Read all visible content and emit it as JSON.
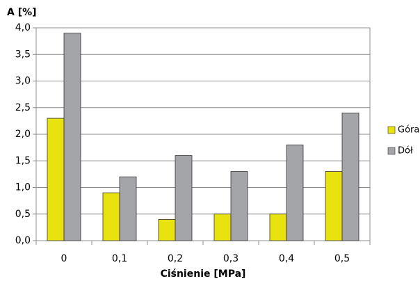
{
  "chart_data": {
    "type": "bar",
    "y_label": "A [%]",
    "x_label": "Ciśnienie [MPa]",
    "categories": [
      "0",
      "0,1",
      "0,2",
      "0,3",
      "0,4",
      "0,5"
    ],
    "series": [
      {
        "name": "Góra",
        "color": "#e8e20e",
        "values": [
          2.3,
          0.9,
          0.4,
          0.5,
          0.5,
          1.3
        ]
      },
      {
        "name": "Dół",
        "color": "#a3a5a8",
        "values": [
          3.9,
          1.2,
          1.6,
          1.3,
          1.8,
          2.4
        ]
      }
    ],
    "ylim": [
      0,
      4
    ],
    "yticks": [
      {
        "value": 0,
        "label": "0,0"
      },
      {
        "value": 0.5,
        "label": "0,5"
      },
      {
        "value": 1,
        "label": "1,0"
      },
      {
        "value": 1.5,
        "label": "1,5"
      },
      {
        "value": 2,
        "label": "2,0"
      },
      {
        "value": 2.5,
        "label": "2,5"
      },
      {
        "value": 3,
        "label": "3,0"
      },
      {
        "value": 3.5,
        "label": "3,5"
      },
      {
        "value": 4,
        "label": "4,0"
      }
    ],
    "grid": true,
    "legend": "right"
  }
}
